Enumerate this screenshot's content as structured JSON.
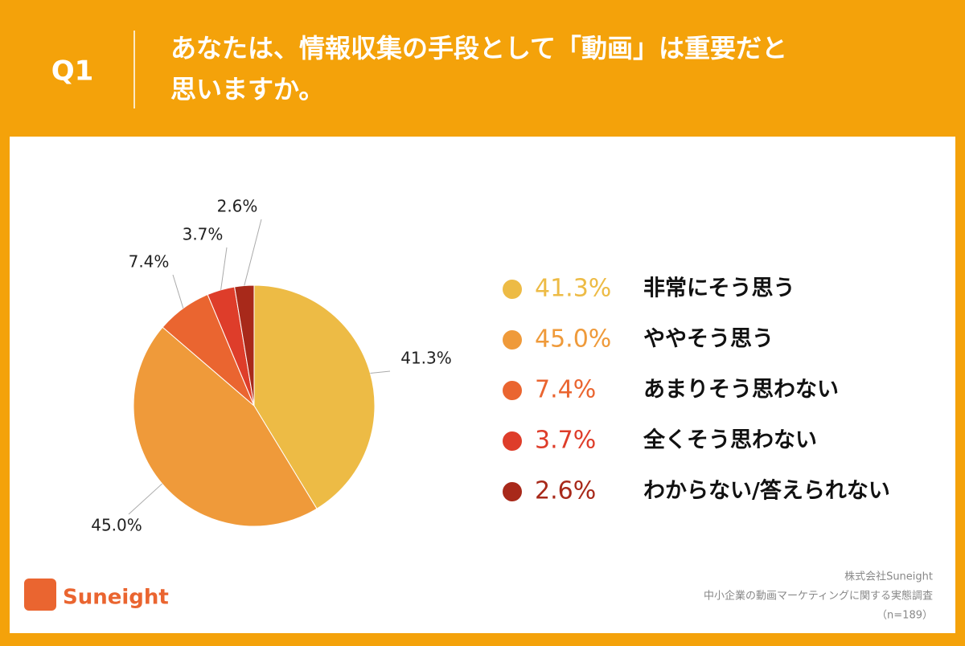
{
  "header": {
    "number": "Q1",
    "question_lines": [
      "あなたは、情報収集の手段として「動画」は重要だと",
      "思いますか。"
    ]
  },
  "chart_data": {
    "type": "pie",
    "categories": [
      "非常にそう思う",
      "ややそう思う",
      "あまりそう思わない",
      "全くそう思わない",
      "わからない/答えられない"
    ],
    "values": [
      41.3,
      45.0,
      7.4,
      3.7,
      2.6
    ],
    "value_labels": [
      "41.3%",
      "45.0%",
      "7.4%",
      "3.7%",
      "2.6%"
    ],
    "colors": [
      "#edbb45",
      "#ef9a3a",
      "#ea6530",
      "#de3d2a",
      "#a8291a"
    ]
  },
  "footer": {
    "logo": "Suneight",
    "lines": [
      "株式会社Suneight",
      "中小企業の動画マーケティングに関する実態調査",
      "（n=189）"
    ]
  }
}
